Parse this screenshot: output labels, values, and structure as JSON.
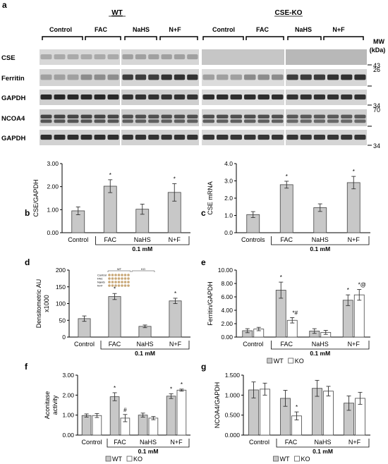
{
  "figure": {
    "panel_a": {
      "letter": "a",
      "group_wt": "WT",
      "group_ko": "CSE-KO",
      "conditions": [
        "Control",
        "FAC",
        "NaHS",
        "N+F",
        "Control",
        "FAC",
        "NaHS",
        "N+F"
      ],
      "mw_title": "MW",
      "mw_unit": "(kDa)",
      "rows": [
        {
          "label": "CSE",
          "marker": "43"
        },
        {
          "label": "Ferritin",
          "marker": "26"
        },
        {
          "label": "GAPDH",
          "marker": "34"
        },
        {
          "label": "NCOA4",
          "marker": "70"
        },
        {
          "label": "GAPDH",
          "marker": "34"
        }
      ]
    },
    "groups_label": "0.1 mM",
    "inset": {
      "wt": "WT",
      "ko": "KO",
      "rows": [
        "Control",
        "FAC",
        "NaHS",
        "N+F"
      ]
    },
    "colors": {
      "gray_bar": "#c8c8c8",
      "white_bar": "#ffffff",
      "axis": "#000000"
    }
  },
  "chart_data": [
    {
      "panel": "b",
      "type": "bar",
      "categories": [
        "Control",
        "FAC",
        "NaHS",
        "N+F"
      ],
      "values": [
        0.95,
        2.02,
        1.02,
        1.75
      ],
      "errors": [
        0.17,
        0.28,
        0.22,
        0.38
      ],
      "annotations": [
        "",
        "*",
        "",
        "*"
      ],
      "ylabel": "CSE/GAPDH",
      "yticks": [
        "0.00",
        "1.00",
        "2.00",
        "3.00"
      ],
      "ylim": [
        0,
        3
      ],
      "group_label": "0.1 mM"
    },
    {
      "panel": "c",
      "type": "bar",
      "categories": [
        "Controls",
        "FAC",
        "NaHS",
        "N+F"
      ],
      "values": [
        1.05,
        2.78,
        1.45,
        2.9
      ],
      "errors": [
        0.17,
        0.2,
        0.22,
        0.36
      ],
      "annotations": [
        "",
        "*",
        "",
        "*"
      ],
      "ylabel": "CSE mRNA",
      "yticks": [
        "0.0",
        "1.0",
        "2.0",
        "3.0",
        "4.0"
      ],
      "ylim": [
        0,
        4
      ],
      "group_label": "0.1 mM"
    },
    {
      "panel": "d",
      "type": "bar",
      "categories": [
        "Control",
        "FAC",
        "NaHS",
        "N+F"
      ],
      "values": [
        55,
        121,
        32,
        108
      ],
      "errors": [
        8,
        9,
        4,
        8
      ],
      "annotations": [
        "",
        "*",
        "",
        "*"
      ],
      "ylabel": "Densitometric AU x1000",
      "yticks": [
        "0",
        "50",
        "100",
        "150",
        "200"
      ],
      "ylim": [
        0,
        200
      ],
      "group_label": "0.1 mM"
    },
    {
      "panel": "e",
      "type": "bar",
      "categories": [
        "Control",
        "FAC",
        "NaHS",
        "N+F"
      ],
      "series": [
        {
          "name": "WT",
          "values": [
            0.95,
            7.0,
            0.9,
            5.5
          ],
          "errors": [
            0.3,
            1.2,
            0.35,
            0.8
          ],
          "annotations": [
            "",
            "*",
            "",
            "*"
          ]
        },
        {
          "name": "KO",
          "values": [
            1.2,
            2.5,
            0.7,
            6.3
          ],
          "errors": [
            0.25,
            0.4,
            0.3,
            0.8
          ],
          "annotations": [
            "",
            "*#",
            "",
            "*@"
          ]
        }
      ],
      "ylabel": "Ferritin/GAPDH",
      "yticks": [
        "0.00",
        "2.00",
        "4.00",
        "6.00",
        "8.00",
        "10.00"
      ],
      "ylim": [
        0,
        10
      ],
      "group_label": "0.1 mM"
    },
    {
      "panel": "f",
      "type": "bar",
      "categories": [
        "Control",
        "FAC",
        "NaHS",
        "N+F"
      ],
      "series": [
        {
          "name": "WT",
          "values": [
            0.98,
            1.92,
            1.0,
            1.95
          ],
          "errors": [
            0.08,
            0.2,
            0.1,
            0.12
          ],
          "annotations": [
            "",
            "*",
            "",
            "*"
          ]
        },
        {
          "name": "KO",
          "values": [
            0.98,
            0.85,
            0.85,
            2.25
          ],
          "errors": [
            0.1,
            0.18,
            0.08,
            0.05
          ],
          "annotations": [
            "",
            "#",
            "",
            "*"
          ]
        }
      ],
      "ylabel": "Aconitase activity",
      "yticks": [
        "0.00",
        "1.00",
        "2.00",
        "3.00"
      ],
      "ylim": [
        0,
        3
      ],
      "group_label": "0.1 mM"
    },
    {
      "panel": "g",
      "type": "bar",
      "categories": [
        "Control",
        "FAC",
        "NaHS",
        "N+F"
      ],
      "series": [
        {
          "name": "WT",
          "values": [
            1.13,
            0.92,
            1.17,
            0.8
          ],
          "errors": [
            0.2,
            0.2,
            0.2,
            0.18
          ],
          "annotations": [
            "",
            "",
            "",
            ""
          ]
        },
        {
          "name": "KO",
          "values": [
            1.15,
            0.48,
            1.1,
            0.92
          ],
          "errors": [
            0.15,
            0.1,
            0.12,
            0.15
          ],
          "annotations": [
            "",
            "*",
            "",
            ""
          ]
        }
      ],
      "ylabel": "NCOA4/GAPDH",
      "yticks": [
        "0.000",
        "0.500",
        "1.000",
        "1.500"
      ],
      "ylim": [
        0,
        1.5
      ],
      "group_label": "0.1 mM"
    }
  ]
}
